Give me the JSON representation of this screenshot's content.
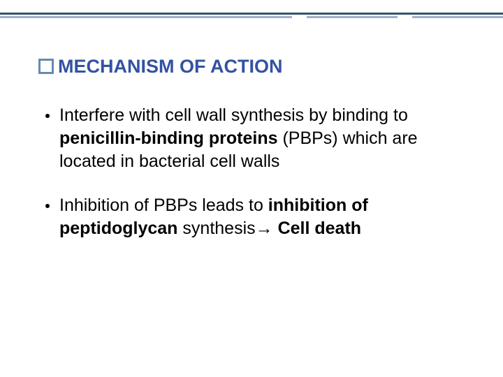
{
  "rule": {
    "solid_color": "#37526f",
    "broken_color": "#9eb1c4"
  },
  "heading": {
    "bullet_border_color": "#668ab0",
    "text_color": "#3352a3",
    "text": "MECHANISM OF ACTION",
    "fontsize": 27
  },
  "bullets": [
    {
      "parts": [
        {
          "text": "Interfere with cell wall synthesis by binding to ",
          "bold": false
        },
        {
          "text": "penicillin-binding proteins",
          "bold": true
        },
        {
          "text": " (PBPs) which are located in bacterial cell walls",
          "bold": false
        }
      ]
    },
    {
      "parts": [
        {
          "text": "Inhibition of PBPs leads to ",
          "bold": false
        },
        {
          "text": "inhibition of peptidoglycan",
          "bold": true
        },
        {
          "text": " synthesis→ ",
          "bold": false
        },
        {
          "text": "Cell death",
          "bold": true
        }
      ]
    }
  ],
  "body_fontsize": 25,
  "body_color": "#000000",
  "background_color": "#ffffff"
}
